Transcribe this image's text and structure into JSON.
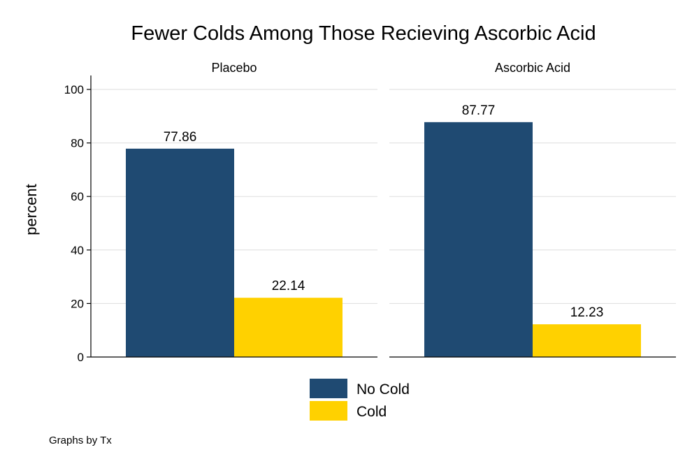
{
  "chart_data": {
    "type": "bar",
    "title": "Fewer Colds Among Those Recieving Ascorbic Acid",
    "ylabel": "percent",
    "ylim": [
      0,
      100
    ],
    "yticks": [
      "0",
      "20",
      "40",
      "60",
      "80",
      "100"
    ],
    "grid": true,
    "legend_position": "bottom",
    "panels": [
      {
        "label": "Placebo",
        "values": [
          77.86,
          22.14
        ]
      },
      {
        "label": "Ascorbic Acid",
        "values": [
          87.77,
          12.23
        ]
      }
    ],
    "series": [
      {
        "name": "No Cold",
        "color": "#1f4a72"
      },
      {
        "name": "Cold",
        "color": "#ffd100"
      }
    ],
    "note": "Graphs by Tx"
  }
}
